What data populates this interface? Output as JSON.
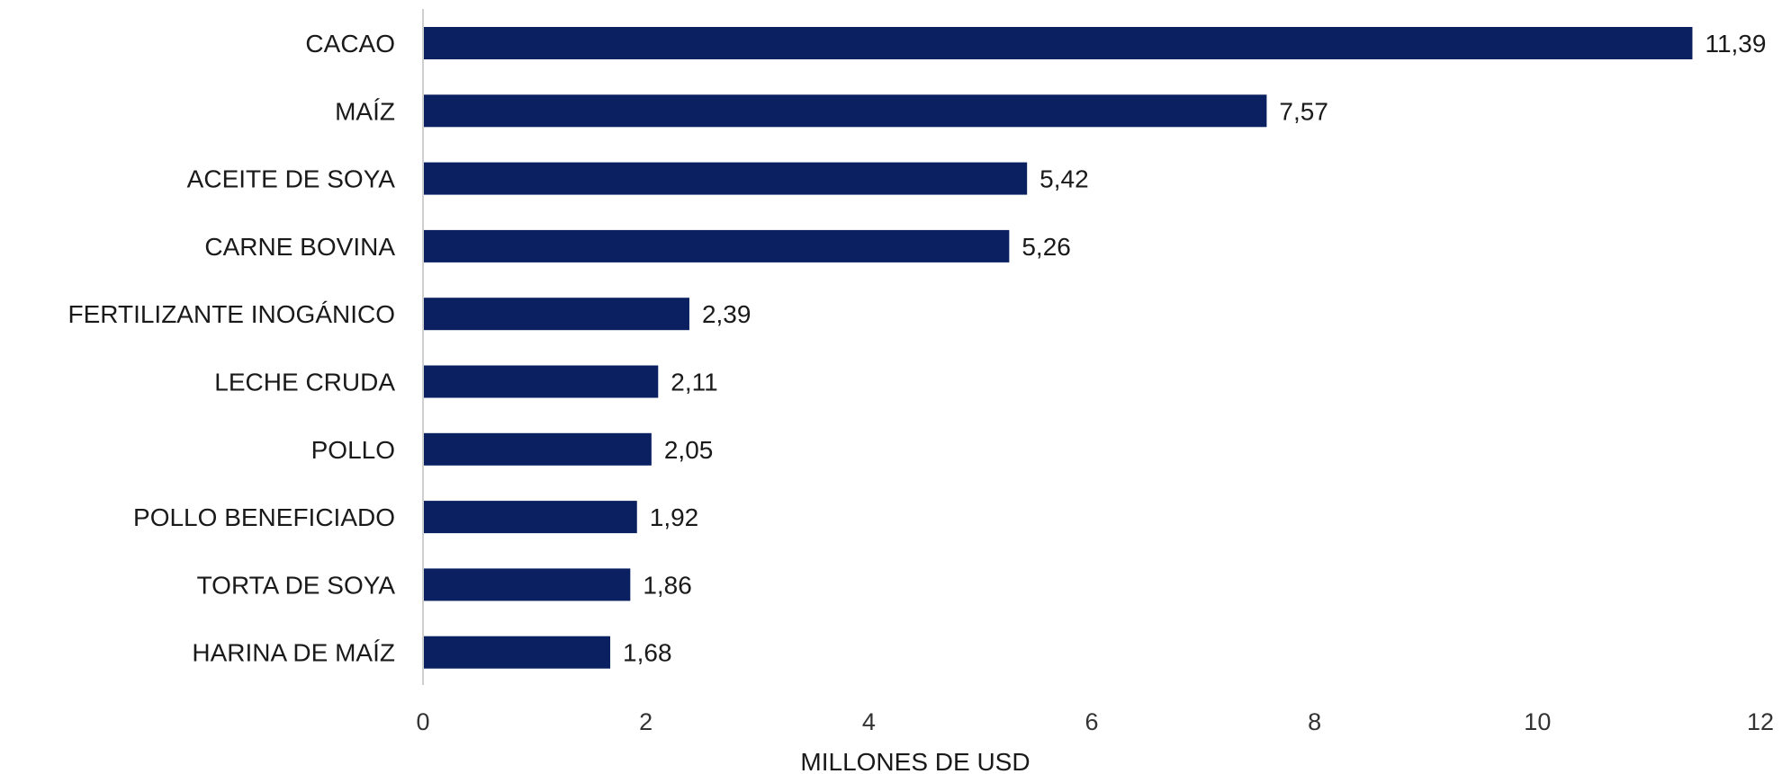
{
  "chart_data": {
    "type": "bar",
    "orientation": "horizontal",
    "categories": [
      "CACAO",
      "MAÍZ",
      "ACEITE DE SOYA",
      "CARNE BOVINA",
      "FERTILIZANTE INOGÁNICO",
      "LECHE CRUDA",
      "POLLO",
      "POLLO BENEFICIADO",
      "TORTA DE SOYA",
      "HARINA DE MAÍZ"
    ],
    "values": [
      11.39,
      7.57,
      5.42,
      5.26,
      2.39,
      2.11,
      2.05,
      1.92,
      1.86,
      1.68
    ],
    "value_labels": [
      "11,39",
      "7,57",
      "5,42",
      "5,26",
      "2,39",
      "2,11",
      "2,05",
      "1,92",
      "1,86",
      "1,68"
    ],
    "xlabel": "MILLONES DE USD",
    "ylabel": "",
    "xlim": [
      0,
      12
    ],
    "xticks": [
      0,
      2,
      4,
      6,
      8,
      10,
      12
    ],
    "grid": false,
    "bar_color": "#0a2060",
    "legend": "none"
  }
}
